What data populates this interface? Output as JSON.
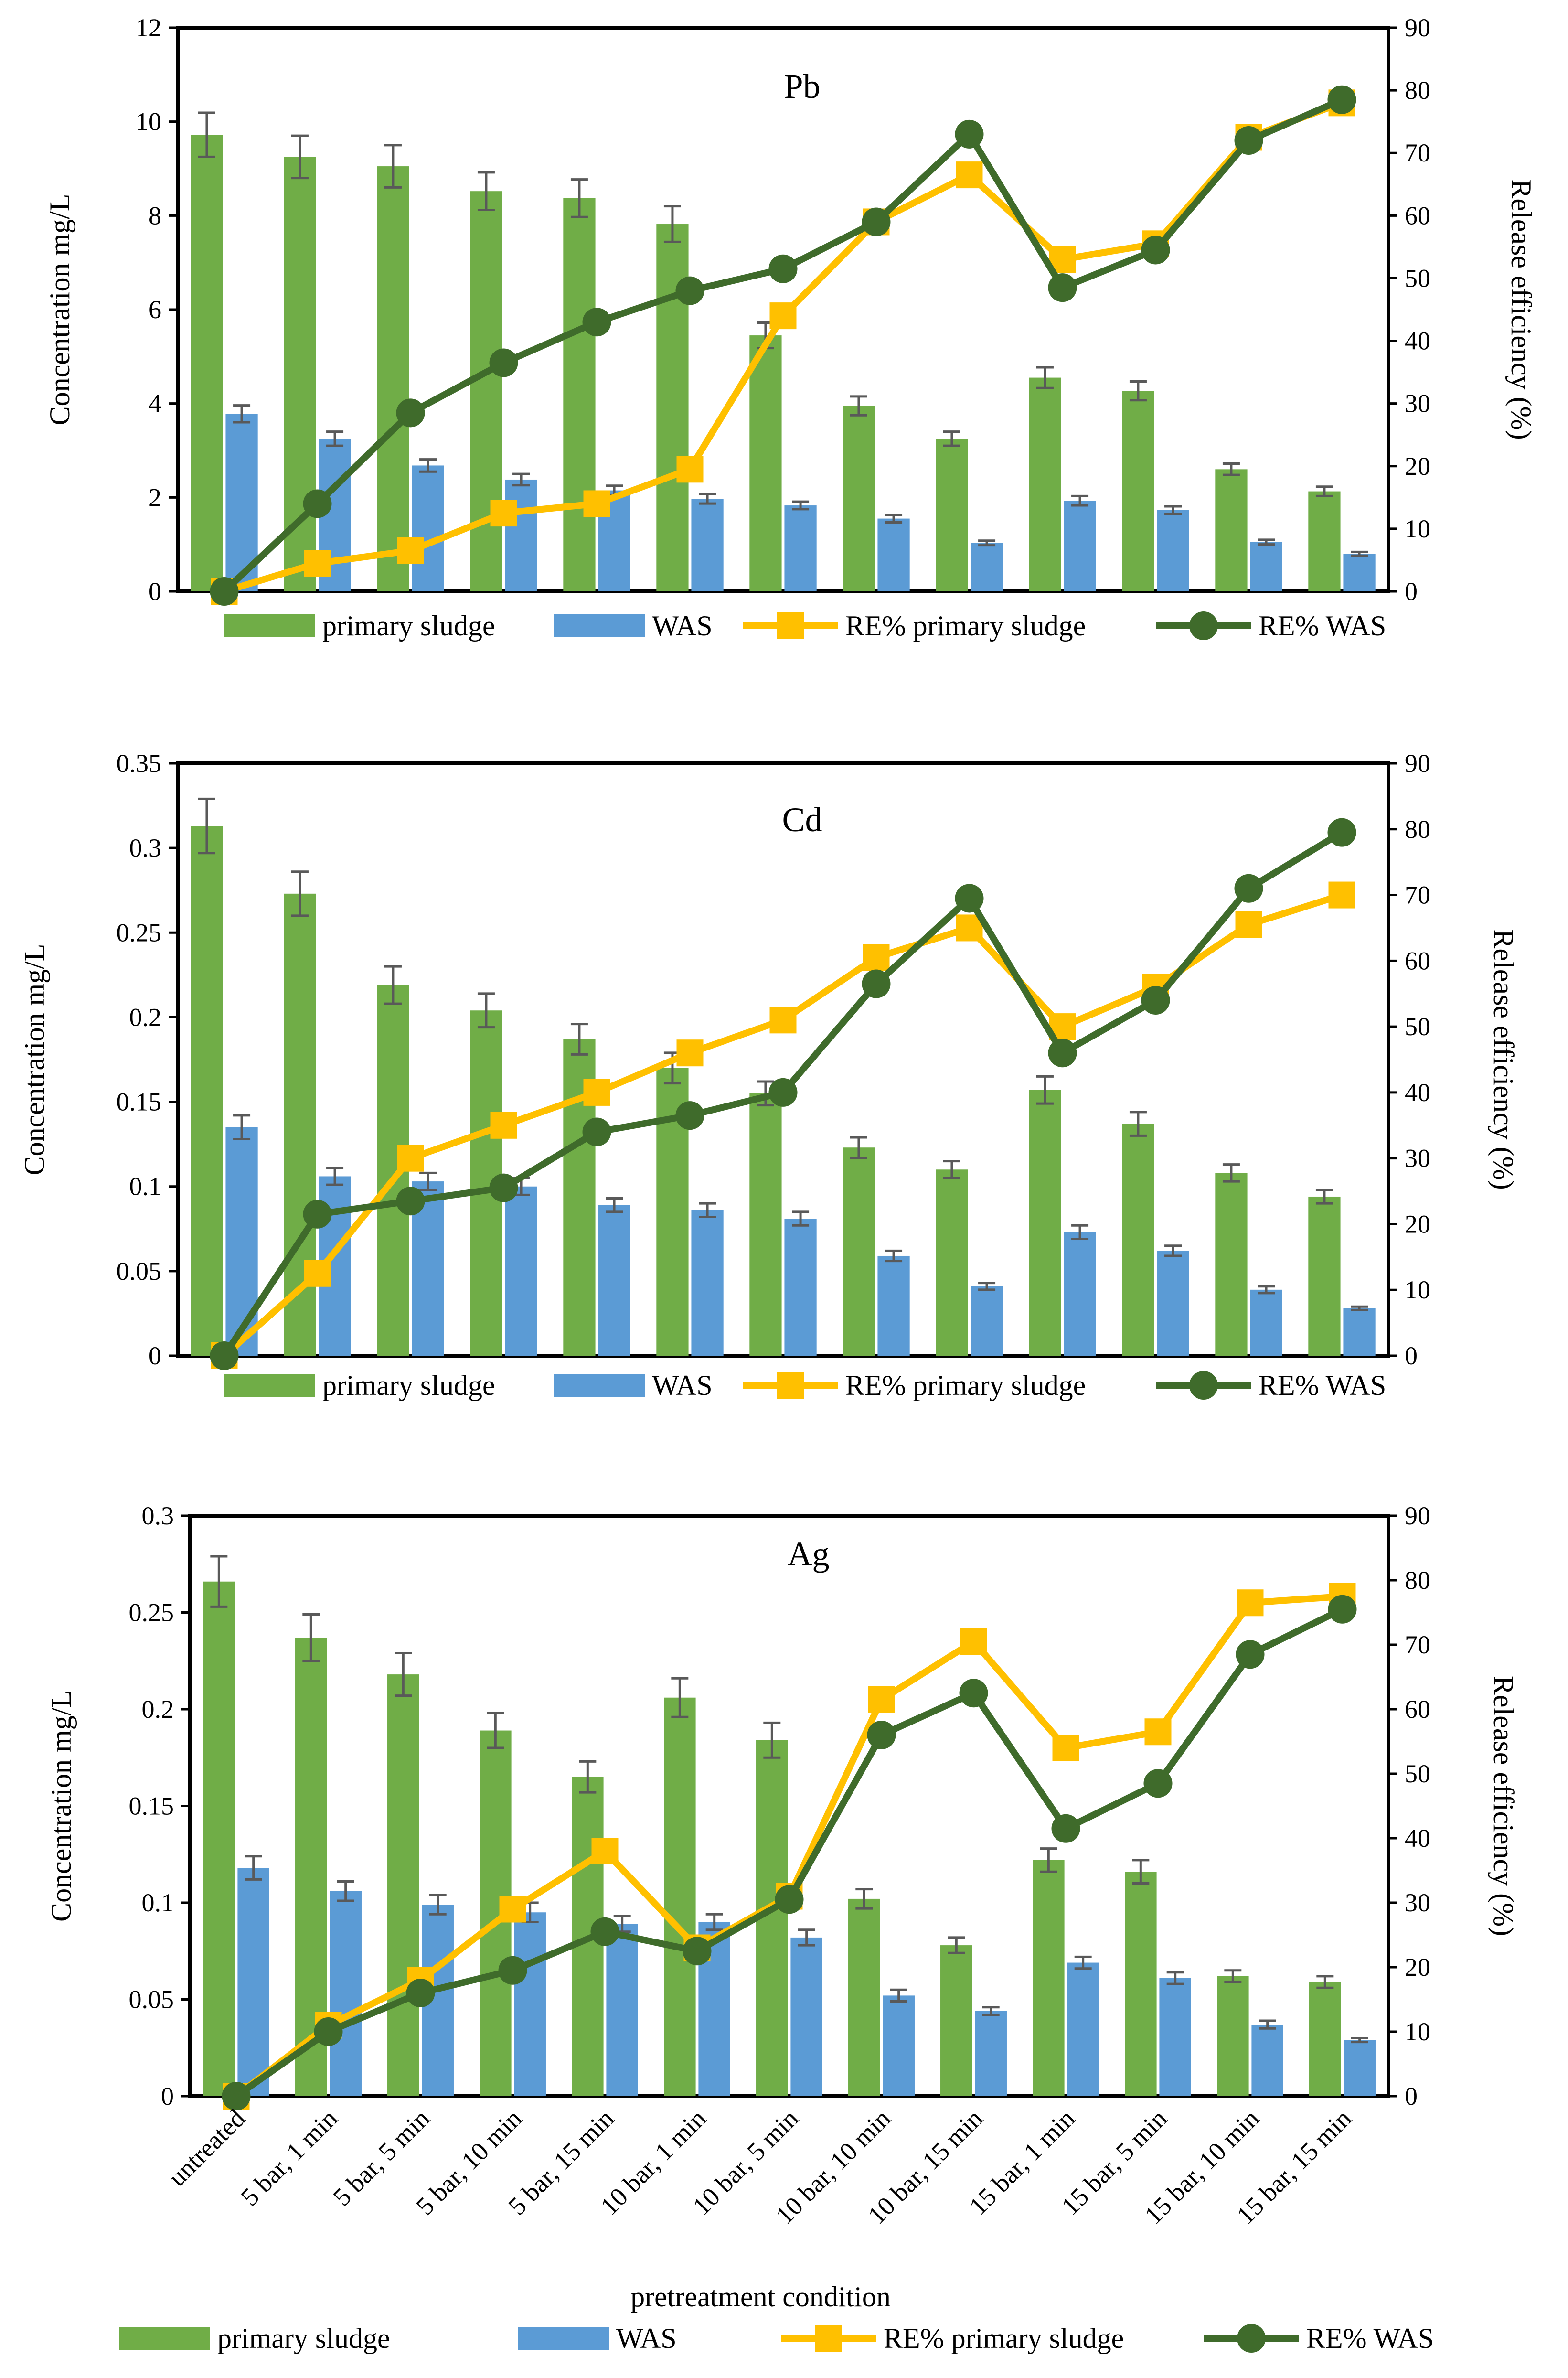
{
  "colors": {
    "primary_bar": "#70AD47",
    "was_bar": "#5B9BD5",
    "re_primary_line": "#FFC000",
    "re_was_line": "#3F6B2B",
    "error_bar": "#595959"
  },
  "x_axis_label": "pretreatment condition",
  "chart_data": [
    {
      "type": "bar",
      "title": "Pb",
      "ylabel": "Concentration mg/L",
      "y2label": "Release efficiency (%)",
      "ylim": [
        0,
        12
      ],
      "yticks": [
        "0",
        "2",
        "4",
        "6",
        "8",
        "10",
        "12"
      ],
      "y2lim": [
        0,
        90
      ],
      "y2ticks": [
        "0",
        "10",
        "20",
        "30",
        "40",
        "50",
        "60",
        "70",
        "80",
        "90"
      ],
      "categories": [
        "untreated",
        "5 bar, 1 min",
        "5 bar, 5 min",
        "5 bar, 10 min",
        "5 bar, 15 min",
        "10 bar, 1 min",
        "10 bar, 5 min",
        "10 bar, 10 min",
        "10 bar, 15 min",
        "15 bar, 1 min",
        "15 bar, 5 min",
        "15 bar, 10 min",
        "15 bar, 15 min"
      ],
      "show_category_labels": false,
      "series": [
        {
          "name": "primary sludge",
          "kind": "bar",
          "axis": "left",
          "values": [
            9.72,
            9.25,
            9.05,
            8.52,
            8.37,
            7.82,
            5.45,
            3.95,
            3.25,
            4.55,
            4.27,
            2.6,
            2.13
          ],
          "errors": [
            0.47,
            0.45,
            0.45,
            0.4,
            0.4,
            0.38,
            0.27,
            0.2,
            0.15,
            0.22,
            0.2,
            0.12,
            0.1
          ]
        },
        {
          "name": "WAS",
          "kind": "bar",
          "axis": "left",
          "values": [
            3.78,
            3.25,
            2.68,
            2.38,
            2.15,
            1.97,
            1.83,
            1.55,
            1.03,
            1.93,
            1.73,
            1.05,
            0.8
          ],
          "errors": [
            0.18,
            0.15,
            0.13,
            0.12,
            0.1,
            0.1,
            0.08,
            0.08,
            0.05,
            0.1,
            0.08,
            0.05,
            0.04
          ]
        },
        {
          "name": "RE% primary sludge",
          "kind": "line",
          "axis": "right",
          "marker": "square",
          "values": [
            0,
            4.5,
            6.5,
            12.5,
            14,
            19.5,
            44,
            59,
            66.5,
            53,
            55.5,
            72.5,
            78
          ]
        },
        {
          "name": "RE% WAS",
          "kind": "line",
          "axis": "right",
          "marker": "circle",
          "values": [
            0,
            14,
            28.5,
            36.5,
            43,
            48,
            51.5,
            59,
            73,
            48.5,
            54.5,
            72,
            78.5
          ]
        }
      ],
      "legend": [
        "primary sludge",
        "WAS",
        "RE% primary sludge",
        "RE% WAS"
      ],
      "legend_position": "bottom"
    },
    {
      "type": "bar",
      "title": "Cd",
      "ylabel": "Concentration mg/L",
      "y2label": "Release efficiency (%)",
      "ylim": [
        0,
        0.35
      ],
      "yticks": [
        "0",
        "0.05",
        "0.1",
        "0.15",
        "0.2",
        "0.25",
        "0.3",
        "0.35"
      ],
      "y2lim": [
        0,
        90
      ],
      "y2ticks": [
        "0",
        "10",
        "20",
        "30",
        "40",
        "50",
        "60",
        "70",
        "80",
        "90"
      ],
      "categories": [
        "untreated",
        "5 bar, 1 min",
        "5 bar, 5 min",
        "5 bar, 10 min",
        "5 bar, 15 min",
        "10 bar, 1 min",
        "10 bar, 5 min",
        "10 bar, 10 min",
        "10 bar, 15 min",
        "15 bar, 1 min",
        "15 bar, 5 min",
        "15 bar, 10 min",
        "15 bar, 15 min"
      ],
      "show_category_labels": false,
      "series": [
        {
          "name": "primary sludge",
          "kind": "bar",
          "axis": "left",
          "values": [
            0.313,
            0.273,
            0.219,
            0.204,
            0.187,
            0.17,
            0.155,
            0.123,
            0.11,
            0.157,
            0.137,
            0.108,
            0.094
          ],
          "errors": [
            0.016,
            0.013,
            0.011,
            0.01,
            0.009,
            0.009,
            0.007,
            0.006,
            0.005,
            0.008,
            0.007,
            0.005,
            0.004
          ]
        },
        {
          "name": "WAS",
          "kind": "bar",
          "axis": "left",
          "values": [
            0.135,
            0.106,
            0.103,
            0.1,
            0.089,
            0.086,
            0.081,
            0.059,
            0.041,
            0.073,
            0.062,
            0.039,
            0.028
          ],
          "errors": [
            0.007,
            0.005,
            0.005,
            0.005,
            0.004,
            0.004,
            0.004,
            0.003,
            0.002,
            0.004,
            0.003,
            0.002,
            0.001
          ]
        },
        {
          "name": "RE% primary sludge",
          "kind": "line",
          "axis": "right",
          "marker": "square",
          "values": [
            0,
            12.5,
            30,
            35,
            40,
            46,
            51,
            60.5,
            65,
            50,
            56,
            65.5,
            70
          ]
        },
        {
          "name": "RE% WAS",
          "kind": "line",
          "axis": "right",
          "marker": "circle",
          "values": [
            0,
            21.5,
            23.5,
            25.5,
            34,
            36.5,
            40,
            56.5,
            69.5,
            46,
            54,
            71,
            79.5
          ]
        }
      ],
      "legend": [
        "primary sludge",
        "WAS",
        "RE% primary sludge",
        "RE% WAS"
      ],
      "legend_position": "bottom"
    },
    {
      "type": "bar",
      "title": "Ag",
      "ylabel": "Concentration mg/L",
      "y2label": "Release efficiency (%)",
      "ylim": [
        0,
        0.3
      ],
      "yticks": [
        "0",
        "0.05",
        "0.1",
        "0.15",
        "0.2",
        "0.25",
        "0.3"
      ],
      "y2lim": [
        0,
        90
      ],
      "y2ticks": [
        "0",
        "10",
        "20",
        "30",
        "40",
        "50",
        "60",
        "70",
        "80",
        "90"
      ],
      "categories": [
        "untreated",
        "5 bar, 1 min",
        "5 bar, 5 min",
        "5 bar, 10 min",
        "5 bar, 15 min",
        "10 bar, 1 min",
        "10 bar, 5 min",
        "10 bar, 10 min",
        "10 bar, 15 min",
        "15 bar, 1 min",
        "15 bar, 5 min",
        "15 bar, 10 min",
        "15 bar, 15 min"
      ],
      "show_category_labels": true,
      "xlabel": "pretreatment condition",
      "series": [
        {
          "name": "primary sludge",
          "kind": "bar",
          "axis": "left",
          "values": [
            0.266,
            0.237,
            0.218,
            0.189,
            0.165,
            0.206,
            0.184,
            0.102,
            0.078,
            0.122,
            0.116,
            0.062,
            0.059
          ],
          "errors": [
            0.013,
            0.012,
            0.011,
            0.009,
            0.008,
            0.01,
            0.009,
            0.005,
            0.004,
            0.006,
            0.006,
            0.003,
            0.003
          ]
        },
        {
          "name": "WAS",
          "kind": "bar",
          "axis": "left",
          "values": [
            0.118,
            0.106,
            0.099,
            0.095,
            0.089,
            0.09,
            0.082,
            0.052,
            0.044,
            0.069,
            0.061,
            0.037,
            0.029
          ],
          "errors": [
            0.006,
            0.005,
            0.005,
            0.005,
            0.004,
            0.004,
            0.004,
            0.003,
            0.002,
            0.003,
            0.003,
            0.002,
            0.001
          ]
        },
        {
          "name": "RE% primary sludge",
          "kind": "line",
          "axis": "right",
          "marker": "square",
          "values": [
            0,
            11,
            18,
            29,
            38,
            23,
            31,
            61.5,
            70.5,
            54,
            56.5,
            76.5,
            77.5
          ]
        },
        {
          "name": "RE% WAS",
          "kind": "line",
          "axis": "right",
          "marker": "circle",
          "values": [
            0,
            10,
            16,
            19.5,
            25.5,
            22.5,
            30.5,
            56,
            62.5,
            41.5,
            48.5,
            68.5,
            75.5
          ]
        }
      ],
      "legend": [
        "primary sludge",
        "WAS",
        "RE% primary sludge",
        "RE% WAS"
      ],
      "legend_position": "bottom"
    }
  ]
}
